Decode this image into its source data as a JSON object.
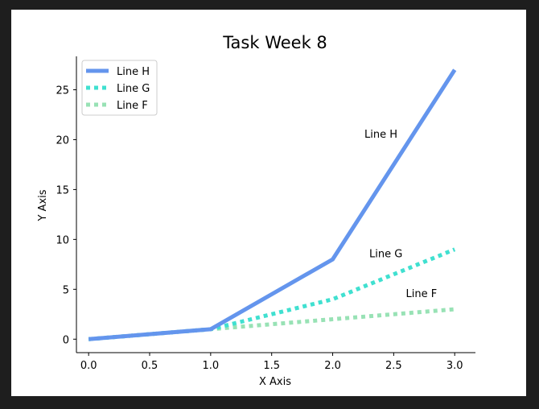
{
  "chart_data": {
    "type": "line",
    "title": "Task Week 8",
    "xlabel": "X Axis",
    "ylabel": "Y Axis",
    "xlim": [
      -0.1,
      3.17
    ],
    "ylim": [
      -1.35,
      28.35
    ],
    "xticks": [
      0.0,
      0.5,
      1.0,
      1.5,
      2.0,
      2.5,
      3.0
    ],
    "xtick_labels": [
      "0.0",
      "0.5",
      "1.0",
      "1.5",
      "2.0",
      "2.5",
      "3.0"
    ],
    "yticks": [
      0,
      5,
      10,
      15,
      20,
      25
    ],
    "ytick_labels": [
      "0",
      "5",
      "10",
      "15",
      "20",
      "25"
    ],
    "grid": false,
    "legend_position": "top-left",
    "series": [
      {
        "name": "Line H",
        "x": [
          0,
          1,
          2,
          3
        ],
        "y": [
          0,
          1,
          8,
          27
        ],
        "color": "#6495ED",
        "style": "solid"
      },
      {
        "name": "Line G",
        "x": [
          0,
          1,
          2,
          3
        ],
        "y": [
          0,
          1,
          4,
          9
        ],
        "color": "#40E0D0",
        "style": "dotted"
      },
      {
        "name": "Line F",
        "x": [
          0,
          1,
          2,
          3
        ],
        "y": [
          0,
          1,
          2,
          3
        ],
        "color": "#98E2B5",
        "style": "dotted"
      }
    ],
    "annotations": [
      {
        "text": "Line H",
        "x": 2.26,
        "y": 20.2
      },
      {
        "text": "Line G",
        "x": 2.3,
        "y": 8.2
      },
      {
        "text": "Line F",
        "x": 2.6,
        "y": 4.2
      }
    ]
  }
}
